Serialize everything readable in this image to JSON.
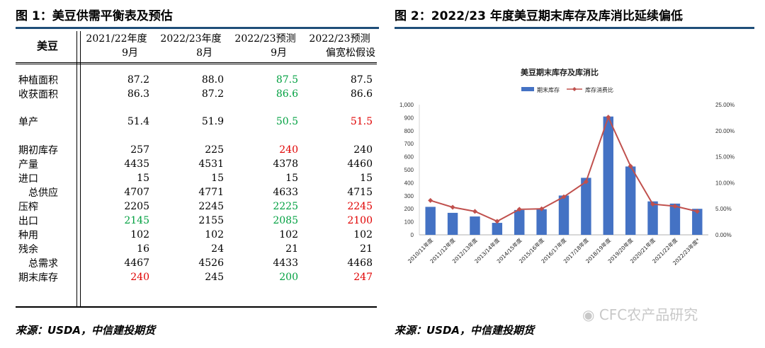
{
  "left_title": "图 1：美豆供需平衡表及预估",
  "right_title": "图 2：2022/23 年度美豆期末库存及库消比延续偏低",
  "source_left": "来源：USDA，中信建投期货",
  "source_right": "来源：USDA，中信建投期货",
  "watermark": "CFC农产品研究",
  "table": {
    "corner": "美豆",
    "headers": [
      [
        "2021/22年度",
        "9月"
      ],
      [
        "2022/23年度",
        "8月"
      ],
      [
        "2022/23预测",
        "9月"
      ],
      [
        "2022/23预测",
        "偏宽松假设"
      ]
    ],
    "rows": [
      {
        "label": "",
        "values": [
          "",
          "",
          "",
          ""
        ],
        "colors": [
          "",
          "",
          "",
          ""
        ]
      },
      {
        "label": "种植面积",
        "values": [
          "87.2",
          "88.0",
          "87.5",
          "87.5"
        ],
        "colors": [
          "",
          "",
          "green",
          ""
        ]
      },
      {
        "label": "收获面积",
        "values": [
          "86.3",
          "87.2",
          "86.6",
          "86.6"
        ],
        "colors": [
          "",
          "",
          "green",
          ""
        ]
      },
      {
        "label": "",
        "values": [
          "",
          "",
          "",
          ""
        ],
        "colors": [
          "",
          "",
          "",
          ""
        ]
      },
      {
        "label": "单产",
        "values": [
          "51.4",
          "51.9",
          "50.5",
          "51.5"
        ],
        "colors": [
          "",
          "",
          "green",
          "red"
        ]
      },
      {
        "label": "",
        "values": [
          "",
          "",
          "",
          ""
        ],
        "colors": [
          "",
          "",
          "",
          ""
        ]
      },
      {
        "label": "期初库存",
        "values": [
          "257",
          "225",
          "240",
          "240"
        ],
        "colors": [
          "",
          "",
          "red",
          ""
        ]
      },
      {
        "label": "产量",
        "values": [
          "4435",
          "4531",
          "4378",
          "4460"
        ],
        "colors": [
          "",
          "",
          "",
          ""
        ]
      },
      {
        "label": "进口",
        "values": [
          "15",
          "15",
          "15",
          "15"
        ],
        "colors": [
          "",
          "",
          "",
          ""
        ]
      },
      {
        "label": "总供应",
        "indent": true,
        "values": [
          "4707",
          "4771",
          "4633",
          "4715"
        ],
        "colors": [
          "",
          "",
          "",
          ""
        ]
      },
      {
        "label": "压榨",
        "values": [
          "2205",
          "2245",
          "2225",
          "2245"
        ],
        "colors": [
          "",
          "",
          "green",
          "red"
        ]
      },
      {
        "label": "出口",
        "values": [
          "2145",
          "2155",
          "2085",
          "2100"
        ],
        "colors": [
          "green",
          "",
          "green",
          "red"
        ]
      },
      {
        "label": "种用",
        "values": [
          "102",
          "102",
          "102",
          "102"
        ],
        "colors": [
          "",
          "",
          "",
          ""
        ]
      },
      {
        "label": "残余",
        "values": [
          "16",
          "24",
          "21",
          "21"
        ],
        "colors": [
          "",
          "",
          "",
          ""
        ]
      },
      {
        "label": "总需求",
        "indent": true,
        "values": [
          "4467",
          "4526",
          "4433",
          "4468"
        ],
        "colors": [
          "",
          "",
          "",
          ""
        ]
      },
      {
        "label": "期末库存",
        "values": [
          "240",
          "245",
          "200",
          "247"
        ],
        "colors": [
          "red",
          "",
          "green",
          "red"
        ]
      }
    ]
  },
  "chart_data": {
    "type": "bar",
    "title": "美豆期末库存及库消比",
    "categories": [
      "2010/11年度",
      "2011/12年度",
      "2012/13年度",
      "2013/14年度",
      "2014/15年度",
      "2015/16年度",
      "2016/17年度",
      "2017/18年度",
      "2018/19年度",
      "2019/20年度",
      "2020/21年度",
      "2021/22年度",
      "2022/23年度*"
    ],
    "series": [
      {
        "name": "期末库存",
        "type": "bar",
        "axis": "left",
        "color": "#4472c4",
        "values": [
          215,
          169,
          141,
          92,
          191,
          197,
          302,
          438,
          909,
          525,
          257,
          240,
          200
        ]
      },
      {
        "name": "库存消费比",
        "type": "line",
        "axis": "right",
        "color": "#c0504d",
        "values": [
          6.6,
          5.3,
          4.5,
          2.6,
          4.9,
          5.0,
          7.3,
          10.2,
          22.6,
          13.2,
          5.9,
          5.5,
          4.5
        ]
      }
    ],
    "ylim_left": [
      0,
      1000
    ],
    "left_ticks": [
      "0",
      "100",
      "200",
      "300",
      "400",
      "500",
      "600",
      "700",
      "800",
      "900",
      "1,000"
    ],
    "ylim_right": [
      0,
      25
    ],
    "right_ticks": [
      "0.00%",
      "5.00%",
      "10.00%",
      "15.00%",
      "20.00%",
      "25.00%"
    ],
    "legend_position": "top",
    "grid": false
  }
}
